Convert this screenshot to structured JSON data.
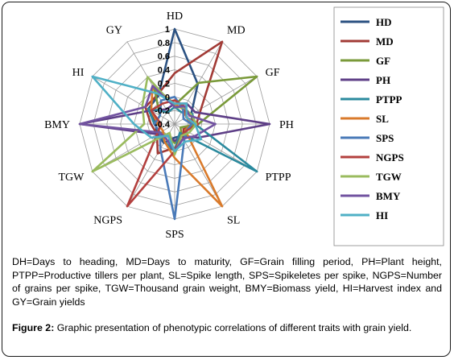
{
  "chart_data": {
    "type": "radar",
    "axes": [
      "HD",
      "MD",
      "GF",
      "PH",
      "PTPP",
      "SL",
      "SPS",
      "NGPS",
      "TGW",
      "BMY",
      "HI",
      "GY"
    ],
    "ticks": [
      "1",
      "0.8",
      "0.6",
      "0.4",
      "0.2",
      "0",
      "-0.2",
      "-0.4"
    ],
    "rlim": [
      -0.4,
      1
    ],
    "grid": true,
    "legend_position": "right",
    "series": [
      {
        "name": "HD",
        "color": "#2c5282",
        "values": [
          1.0,
          0.28,
          -0.12,
          -0.12,
          -0.22,
          -0.2,
          -0.2,
          -0.08,
          -0.1,
          -0.12,
          0.05,
          0.08
        ]
      },
      {
        "name": "MD",
        "color": "#a23b36",
        "values": [
          0.35,
          1.0,
          0.05,
          -0.08,
          -0.25,
          -0.15,
          -0.05,
          0.1,
          -0.1,
          -0.05,
          0.1,
          0.1
        ]
      },
      {
        "name": "GF",
        "color": "#7a9a3a",
        "values": [
          -0.12,
          0.3,
          1.0,
          -0.05,
          -0.3,
          -0.2,
          -0.12,
          -0.2,
          -0.15,
          -0.1,
          -0.15,
          0.2
        ]
      },
      {
        "name": "PH",
        "color": "#5e3f87",
        "values": [
          -0.1,
          -0.05,
          -0.05,
          1.0,
          0.0,
          -0.2,
          -0.15,
          -0.2,
          -0.1,
          1.0,
          0.0,
          -0.15
        ]
      },
      {
        "name": "PTPP",
        "color": "#2b8a9e",
        "values": [
          -0.15,
          -0.2,
          -0.1,
          -0.1,
          1.0,
          -0.25,
          0.0,
          -0.1,
          -0.15,
          -0.1,
          0.05,
          -0.2
        ]
      },
      {
        "name": "SL",
        "color": "#d97a2b",
        "values": [
          -0.1,
          -0.15,
          -0.2,
          -0.15,
          -0.22,
          1.0,
          0.1,
          -0.1,
          -0.2,
          -0.15,
          0.0,
          0.25
        ]
      },
      {
        "name": "SPS",
        "color": "#4a7ab8",
        "values": [
          0.0,
          -0.15,
          -0.25,
          -0.15,
          -0.2,
          -0.12,
          1.0,
          0.02,
          -0.15,
          -0.1,
          -0.15,
          0.0
        ]
      },
      {
        "name": "NGPS",
        "color": "#b3403e",
        "values": [
          -0.05,
          -0.1,
          -0.2,
          -0.05,
          -0.2,
          -0.2,
          0.0,
          1.0,
          -0.1,
          -0.2,
          0.0,
          -0.05
        ]
      },
      {
        "name": "TGW",
        "color": "#9abb5e",
        "values": [
          -0.15,
          -0.12,
          -0.12,
          -0.08,
          -0.15,
          -0.2,
          0.05,
          -0.25,
          1.0,
          0.05,
          0.15,
          0.4
        ]
      },
      {
        "name": "BMY",
        "color": "#7253a0",
        "values": [
          -0.15,
          -0.1,
          -0.15,
          0.2,
          -0.05,
          -0.15,
          0.0,
          -0.15,
          -0.15,
          1.0,
          0.1,
          0.25
        ]
      },
      {
        "name": "HI",
        "color": "#4fb0c6",
        "values": [
          -0.1,
          -0.05,
          -0.2,
          -0.1,
          0.05,
          -0.1,
          0.0,
          -0.2,
          0.0,
          0.2,
          1.0,
          0.12
        ]
      }
    ]
  },
  "captions": {
    "abbreviations": "DH=Days to heading, MD=Days to maturity, GF=Grain filling period, PH=Plant height, PTPP=Productive tillers per plant, SL=Spike length, SPS=Spikeletes per spike, NGPS=Number of grains per spike, TGW=Thousand grain weight, BMY=Biomass yield, HI=Harvest index and GY=Grain yields",
    "figure_label": "Figure 2:",
    "figure_text": " Graphic presentation of phenotypic correlations of different traits with grain yield."
  }
}
